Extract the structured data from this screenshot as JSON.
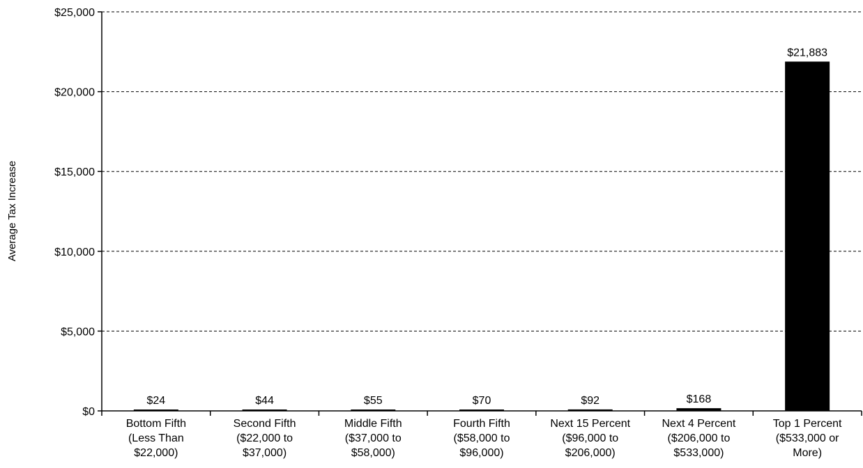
{
  "chart_data": {
    "type": "bar",
    "ylabel": "Average Tax Increase",
    "xlabel": "",
    "ylim": [
      0,
      25000
    ],
    "yticks": [
      0,
      5000,
      10000,
      15000,
      20000,
      25000
    ],
    "ytick_labels": [
      "$0",
      "$5,000",
      "$10,000",
      "$15,000",
      "$20,000",
      "$25,000"
    ],
    "grid": true,
    "bar_color": "#000000",
    "categories": [
      [
        "Bottom Fifth",
        "(Less Than",
        "$22,000)"
      ],
      [
        "Second Fifth",
        "($22,000 to",
        "$37,000)"
      ],
      [
        "Middle Fifth",
        "($37,000 to",
        "$58,000)"
      ],
      [
        "Fourth Fifth",
        "($58,000 to",
        "$96,000)"
      ],
      [
        "Next 15 Percent",
        "($96,000 to",
        "$206,000)"
      ],
      [
        "Next 4 Percent",
        "($206,000 to",
        "$533,000)"
      ],
      [
        "Top 1 Percent",
        "($533,000 or",
        "More)"
      ]
    ],
    "values": [
      24,
      44,
      55,
      70,
      92,
      168,
      21883
    ],
    "data_labels": [
      "$24",
      "$44",
      "$55",
      "$70",
      "$92",
      "$168",
      "$21,883"
    ]
  }
}
